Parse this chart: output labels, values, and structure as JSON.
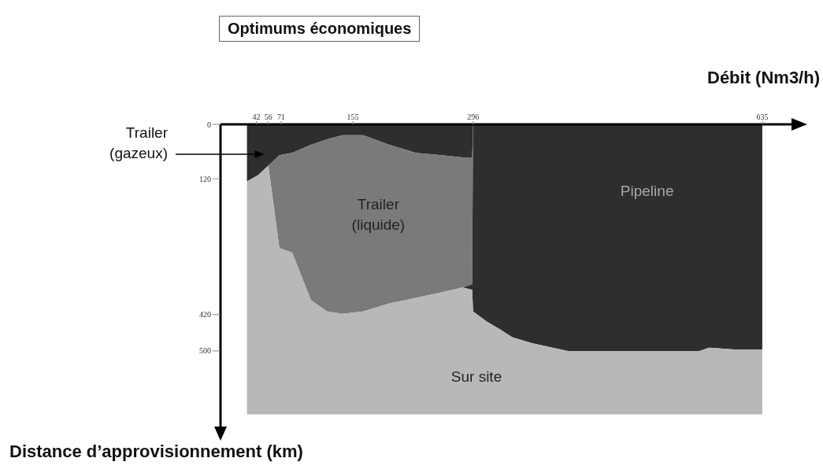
{
  "chart_data": {
    "type": "area",
    "title": "Optimums économiques",
    "xlabel": "Débit (Nm3/h)",
    "ylabel": "Distance d’approvisionnement (km)",
    "stacked": true,
    "legend": false,
    "grid": false,
    "x": [
      31,
      44,
      56,
      69,
      84,
      106,
      125,
      143,
      167,
      198,
      229,
      259,
      284,
      295,
      296,
      312,
      328,
      342,
      365,
      389,
      407,
      561,
      573,
      605,
      635
    ],
    "xlim": [
      0,
      660
    ],
    "xticks": [
      42,
      56,
      71,
      155,
      296,
      635
    ],
    "ylim": [
      660,
      0
    ],
    "yticks": [
      0,
      120,
      420,
      500
    ],
    "series": [
      {
        "name": "Trailer (gazeux)",
        "color": "#2e2e2e",
        "values": [
          126,
          112,
          91,
          68,
          63,
          45,
          33,
          24,
          24,
          45,
          63,
          68,
          73,
          73,
          0,
          0,
          0,
          0,
          0,
          0,
          0,
          0,
          0,
          0,
          0
        ]
      },
      {
        "name": "Trailer (liquide)",
        "color": "#7a7a7a",
        "values": [
          0,
          0,
          0,
          205,
          220,
          343,
          380,
          394,
          389,
          350,
          320,
          303,
          287,
          280,
          0,
          0,
          0,
          0,
          0,
          0,
          0,
          0,
          0,
          0,
          0
        ]
      },
      {
        "name": "Pipeline",
        "color": "#2e2e2e",
        "values": [
          0,
          0,
          0,
          0,
          0,
          0,
          0,
          0,
          0,
          0,
          0,
          0,
          0,
          12,
          413,
          435,
          453,
          470,
          483,
          493,
          500,
          500,
          493,
          497,
          497
        ]
      },
      {
        "name": "Sur site",
        "color": "#b8b8b8",
        "values": [
          514,
          528,
          549,
          367,
          357,
          252,
          227,
          222,
          227,
          245,
          257,
          269,
          280,
          275,
          227,
          205,
          187,
          170,
          157,
          147,
          140,
          140,
          147,
          143,
          143
        ]
      }
    ]
  }
}
